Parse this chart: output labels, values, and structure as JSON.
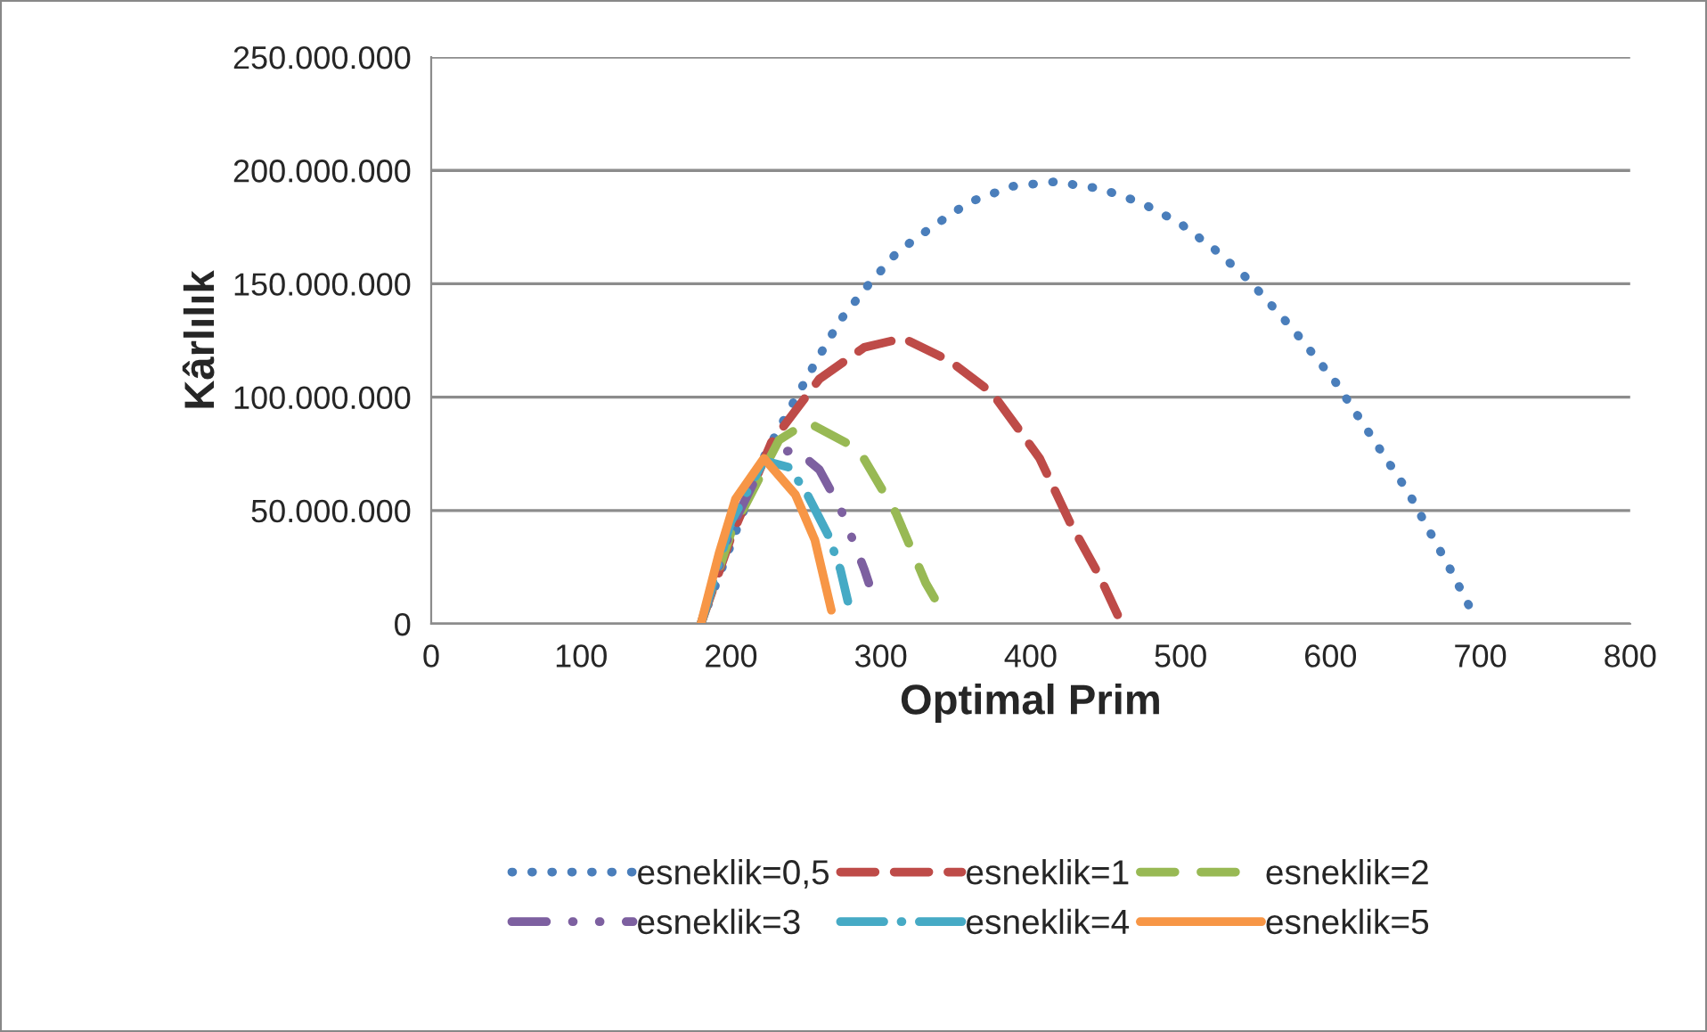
{
  "chart_data": {
    "type": "line",
    "xlabel": "Optimal Prim",
    "ylabel": "Kârlılık",
    "xlim": [
      0,
      800
    ],
    "xticks": [
      0,
      100,
      200,
      300,
      400,
      500,
      600,
      700,
      800
    ],
    "ylim": [
      0,
      250000000
    ],
    "yticks": [
      {
        "value": 0,
        "label": "0"
      },
      {
        "value": 50000000,
        "label": "50.000.000"
      },
      {
        "value": 100000000,
        "label": "100.000.000"
      },
      {
        "value": 150000000,
        "label": "150.000.000"
      },
      {
        "value": 200000000,
        "label": "200.000.000"
      },
      {
        "value": 250000000,
        "label": "250.000.000"
      }
    ],
    "grid": "y",
    "legend": "bottom",
    "series": [
      {
        "name": "esneklik=0,5",
        "color": "#4a7ebb",
        "line_style": "dotted",
        "x": [
          180,
          200,
          223,
          237,
          257,
          273,
          291,
          311,
          334,
          359,
          388,
          416,
          446,
          473,
          499,
          523,
          545,
          575,
          603,
          628,
          652,
          666,
          680,
          694
        ],
        "values": [
          0,
          35000000,
          75000000,
          92000000,
          116000000,
          134000000,
          149000000,
          164000000,
          175000000,
          186000000,
          193000000,
          195000000,
          192000000,
          186000000,
          177000000,
          165000000,
          152000000,
          130000000,
          107000000,
          82000000,
          58000000,
          41000000,
          24000000,
          6000000
        ]
      },
      {
        "name": "esneklik=1",
        "color": "#be4b48",
        "line_style": "dashed",
        "x": [
          180,
          200,
          227,
          259,
          289,
          315,
          346,
          374,
          394,
          406,
          426,
          446,
          458
        ],
        "values": [
          0,
          38000000,
          80000000,
          108000000,
          122000000,
          126000000,
          116000000,
          102000000,
          84000000,
          73000000,
          45000000,
          21000000,
          4000000
        ]
      },
      {
        "name": "esneklik=2",
        "color": "#98b954",
        "line_style": "longdash",
        "x": [
          180,
          200,
          232,
          251,
          285,
          310,
          330,
          337
        ],
        "values": [
          0,
          40000000,
          81000000,
          89000000,
          77000000,
          49000000,
          18000000,
          10000000
        ]
      },
      {
        "name": "esneklik=3",
        "color": "#7d60a0",
        "line_style": "dashdotdot",
        "x": [
          180,
          200,
          224,
          243,
          259,
          273,
          289,
          292
        ],
        "values": [
          0,
          42000000,
          74000000,
          77000000,
          68000000,
          51000000,
          24000000,
          18000000
        ]
      },
      {
        "name": "esneklik=4",
        "color": "#46aac5",
        "line_style": "dashdot",
        "x": [
          180,
          200,
          222,
          239,
          251,
          265,
          273,
          278
        ],
        "values": [
          0,
          45000000,
          72000000,
          69000000,
          57000000,
          39000000,
          24000000,
          10000000
        ]
      },
      {
        "name": "esneklik=5",
        "color": "#f79646",
        "line_style": "solid",
        "x": [
          180,
          192,
          203,
          222,
          243,
          256,
          267
        ],
        "values": [
          0,
          31000000,
          55000000,
          73000000,
          57000000,
          37000000,
          6000000
        ]
      }
    ]
  }
}
